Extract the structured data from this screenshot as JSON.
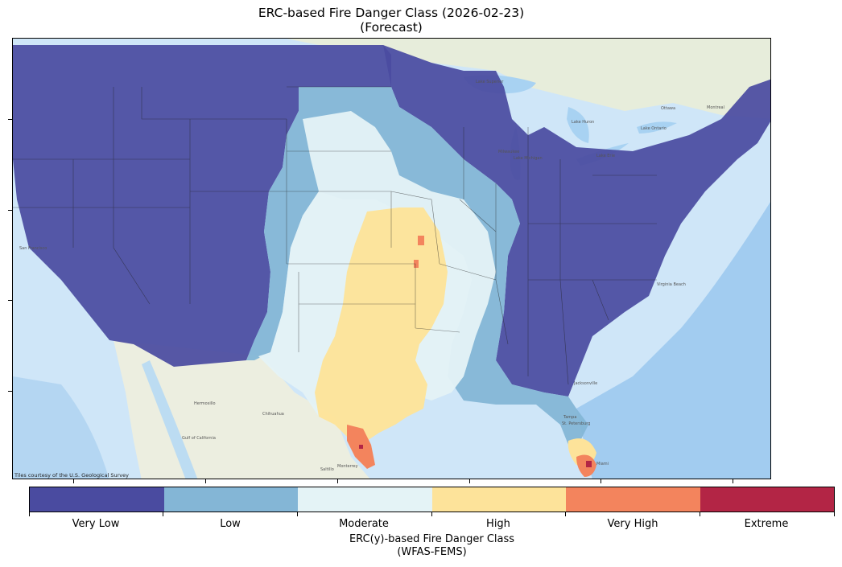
{
  "title": {
    "line1": "ERC-based Fire Danger Class (2026-02-23)",
    "line2": "(Forecast)"
  },
  "map": {
    "attribution": "Tiles courtesy of the U.S. Geological Survey",
    "basemap_labels": [
      "Hermosillo",
      "Chihuahua",
      "Monterrey",
      "Saltillo",
      "Gulf of California",
      "San Francisco",
      "Milwaukee",
      "Ottawa",
      "Montreal",
      "Jacksonville",
      "Miami",
      "Tampa",
      "St. Petersburg",
      "Virginia Beach",
      "Lake Michigan",
      "Lake Superior",
      "Lake Huron",
      "Lake Ontario",
      "Lake Erie"
    ]
  },
  "colorbar": {
    "title_line1": "ERC(y)-based Fire Danger Class",
    "title_line2": "(WFAS-FEMS)",
    "classes": [
      {
        "label": "Very Low",
        "color": "#4a4ba0"
      },
      {
        "label": "Low",
        "color": "#84b6d6"
      },
      {
        "label": "Moderate",
        "color": "#e4f3f6"
      },
      {
        "label": "High",
        "color": "#fde39a"
      },
      {
        "label": "Very High",
        "color": "#f3845d"
      },
      {
        "label": "Extreme",
        "color": "#b32545"
      }
    ]
  },
  "colors": {
    "ocean": "#cfe6f8",
    "deep_ocean": "#7fb5e6",
    "land_base": "#eef0e4"
  }
}
